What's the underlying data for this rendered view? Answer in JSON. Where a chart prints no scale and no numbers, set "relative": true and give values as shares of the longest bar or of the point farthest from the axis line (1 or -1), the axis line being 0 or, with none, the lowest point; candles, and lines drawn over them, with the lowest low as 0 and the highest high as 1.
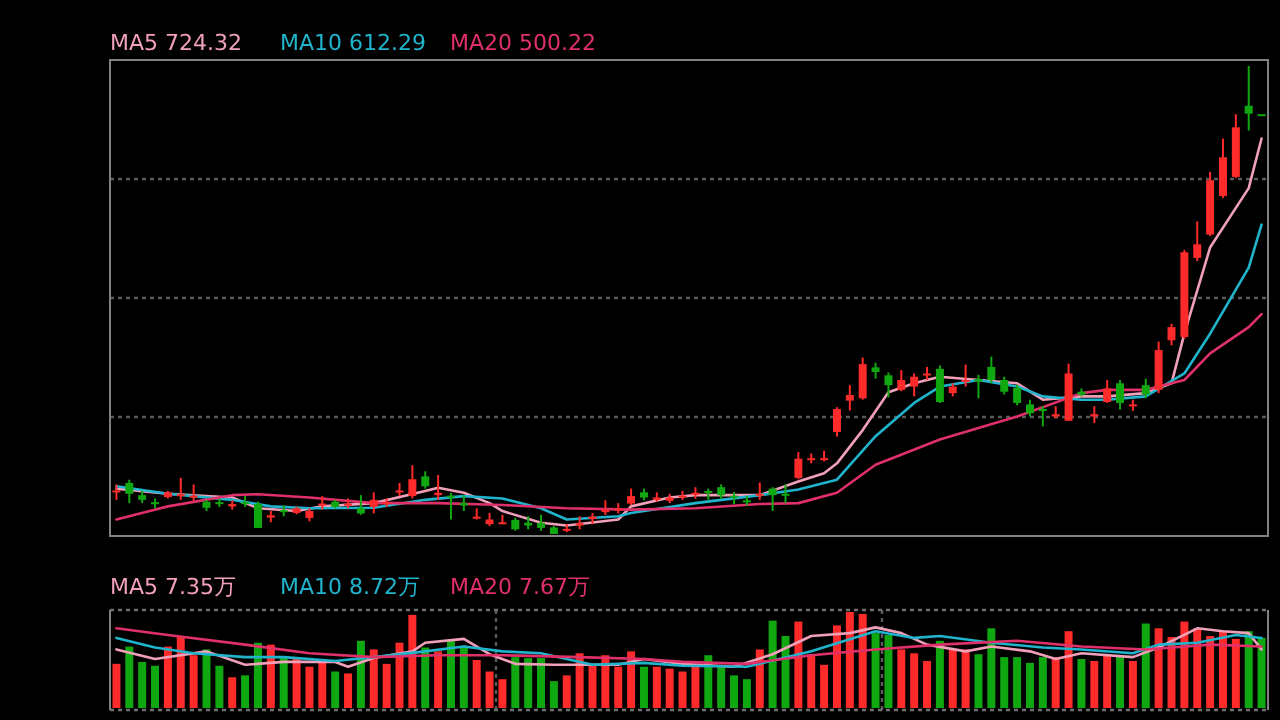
{
  "chart_data": [
    {
      "type": "candlestick",
      "relative": true,
      "grid": "y",
      "legend": "top left",
      "categories": [
        null,
        null,
        null,
        null,
        null,
        null,
        null,
        null,
        null,
        null,
        null,
        null,
        null,
        null,
        null,
        null,
        null,
        null,
        null,
        null,
        null,
        null,
        null,
        null,
        null,
        null,
        null,
        null,
        null,
        null,
        null,
        null,
        null,
        null,
        null,
        null,
        null,
        null,
        null,
        null,
        null,
        null,
        null,
        null,
        null,
        null,
        null,
        null,
        null,
        null,
        null,
        null,
        null,
        null,
        null,
        null,
        null,
        null,
        null,
        null,
        null,
        null,
        null,
        null,
        null,
        null,
        null,
        null,
        null,
        null,
        null,
        null,
        null,
        null,
        null,
        null,
        null,
        null,
        null,
        null,
        null,
        null,
        null,
        null,
        null,
        null,
        null,
        null,
        null,
        null
      ],
      "ohlc": [
        [
          0.09,
          0.106,
          0.073,
          0.093
        ],
        [
          0.109,
          0.116,
          0.066,
          0.086
        ],
        [
          0.083,
          0.092,
          0.066,
          0.073
        ],
        [
          0.068,
          0.076,
          0.055,
          0.065
        ],
        [
          0.079,
          0.092,
          0.076,
          0.089
        ],
        [
          0.082,
          0.12,
          0.073,
          0.085
        ],
        [
          0.079,
          0.106,
          0.071,
          0.082
        ],
        [
          0.069,
          0.073,
          0.049,
          0.056
        ],
        [
          0.068,
          0.075,
          0.058,
          0.064
        ],
        [
          0.059,
          0.072,
          0.052,
          0.064
        ],
        [
          0.068,
          0.081,
          0.058,
          0.064
        ],
        [
          0.064,
          0.069,
          0.013,
          0.013
        ],
        [
          0.035,
          0.049,
          0.025,
          0.04
        ],
        [
          0.051,
          0.061,
          0.038,
          0.047
        ],
        [
          0.045,
          0.058,
          0.042,
          0.055
        ],
        [
          0.034,
          0.055,
          0.027,
          0.049
        ],
        [
          0.061,
          0.081,
          0.052,
          0.065
        ],
        [
          0.069,
          0.073,
          0.055,
          0.058
        ],
        [
          0.062,
          0.076,
          0.055,
          0.065
        ],
        [
          0.055,
          0.083,
          0.041,
          0.044
        ],
        [
          0.058,
          0.089,
          0.044,
          0.073
        ],
        [
          0.065,
          0.076,
          0.058,
          0.068
        ],
        [
          0.09,
          0.109,
          0.081,
          0.093
        ],
        [
          0.081,
          0.147,
          0.076,
          0.117
        ],
        [
          0.123,
          0.134,
          0.097,
          0.102
        ],
        [
          0.083,
          0.126,
          0.073,
          0.088
        ],
        [
          0.082,
          0.088,
          0.031,
          0.078
        ],
        [
          0.066,
          0.083,
          0.049,
          0.061
        ],
        [
          0.034,
          0.055,
          0.031,
          0.037
        ],
        [
          0.021,
          0.045,
          0.017,
          0.031
        ],
        [
          0.023,
          0.041,
          0.021,
          0.025
        ],
        [
          0.03,
          0.035,
          0.007,
          0.01
        ],
        [
          0.024,
          0.038,
          0.01,
          0.018
        ],
        [
          0.024,
          0.041,
          0.007,
          0.013
        ],
        [
          0.014,
          0.017,
          0.0,
          0.0
        ],
        [
          0.008,
          0.021,
          0.004,
          0.011
        ],
        [
          0.018,
          0.038,
          0.01,
          0.023
        ],
        [
          0.032,
          0.045,
          0.021,
          0.037
        ],
        [
          0.048,
          0.072,
          0.041,
          0.051
        ],
        [
          0.051,
          0.066,
          0.044,
          0.054
        ],
        [
          0.065,
          0.097,
          0.062,
          0.081
        ],
        [
          0.089,
          0.097,
          0.072,
          0.078
        ],
        [
          0.073,
          0.089,
          0.069,
          0.078
        ],
        [
          0.071,
          0.086,
          0.066,
          0.078
        ],
        [
          0.079,
          0.092,
          0.073,
          0.082
        ],
        [
          0.085,
          0.1,
          0.075,
          0.088
        ],
        [
          0.092,
          0.097,
          0.073,
          0.088
        ],
        [
          0.1,
          0.106,
          0.075,
          0.083
        ],
        [
          0.082,
          0.09,
          0.064,
          0.078
        ],
        [
          0.072,
          0.081,
          0.061,
          0.069
        ],
        [
          0.082,
          0.11,
          0.073,
          0.086
        ],
        [
          0.097,
          0.1,
          0.049,
          0.083
        ],
        [
          0.086,
          0.106,
          0.066,
          0.082
        ],
        [
          0.12,
          0.175,
          0.117,
          0.161
        ],
        [
          0.158,
          0.172,
          0.151,
          0.162
        ],
        [
          0.16,
          0.178,
          0.155,
          0.162
        ],
        [
          0.218,
          0.271,
          0.208,
          0.267
        ],
        [
          0.285,
          0.318,
          0.264,
          0.297
        ],
        [
          0.29,
          0.377,
          0.287,
          0.363
        ],
        [
          0.356,
          0.366,
          0.332,
          0.346
        ],
        [
          0.339,
          0.345,
          0.292,
          0.318
        ],
        [
          0.308,
          0.35,
          0.305,
          0.329
        ],
        [
          0.315,
          0.343,
          0.294,
          0.336
        ],
        [
          0.34,
          0.357,
          0.329,
          0.343
        ],
        [
          0.353,
          0.36,
          0.28,
          0.282
        ],
        [
          0.301,
          0.322,
          0.294,
          0.315
        ],
        [
          0.325,
          0.362,
          0.315,
          0.329
        ],
        [
          0.331,
          0.34,
          0.29,
          0.326
        ],
        [
          0.357,
          0.379,
          0.322,
          0.329
        ],
        [
          0.329,
          0.336,
          0.298,
          0.304
        ],
        [
          0.312,
          0.319,
          0.275,
          0.28
        ],
        [
          0.277,
          0.287,
          0.251,
          0.258
        ],
        [
          0.267,
          0.273,
          0.23,
          0.263
        ],
        [
          0.251,
          0.273,
          0.247,
          0.256
        ],
        [
          0.242,
          0.364,
          0.242,
          0.343
        ],
        [
          0.304,
          0.311,
          0.294,
          0.298
        ],
        [
          0.251,
          0.273,
          0.237,
          0.256
        ],
        [
          0.282,
          0.329,
          0.28,
          0.311
        ],
        [
          0.322,
          0.329,
          0.266,
          0.28
        ],
        [
          0.273,
          0.287,
          0.263,
          0.277
        ],
        [
          0.318,
          0.332,
          0.29,
          0.298
        ],
        [
          0.308,
          0.411,
          0.301,
          0.393
        ],
        [
          0.414,
          0.449,
          0.403,
          0.442
        ],
        [
          0.421,
          0.607,
          0.417,
          0.602
        ],
        [
          0.59,
          0.668,
          0.583,
          0.619
        ],
        [
          0.64,
          0.774,
          0.637,
          0.756
        ],
        [
          0.722,
          0.845,
          0.718,
          0.805
        ],
        [
          0.763,
          0.897,
          0.76,
          0.869
        ],
        [
          0.915,
          1.0,
          0.862,
          0.898
        ],
        [
          0.897,
          0.897,
          0.897,
          0.897
        ]
      ],
      "colors": [
        "#ff2a2a",
        "#10a810",
        "#10a810",
        "#10a810",
        "#ff2a2a",
        "#ff2a2a",
        "#ff2a2a",
        "#10a810",
        "#10a810",
        "#ff2a2a",
        "#10a810",
        "#10a810",
        "#ff2a2a",
        "#10a810",
        "#ff2a2a",
        "#ff2a2a",
        "#ff2a2a",
        "#10a810",
        "#ff2a2a",
        "#10a810",
        "#ff2a2a",
        "#ff2a2a",
        "#ff2a2a",
        "#ff2a2a",
        "#10a810",
        "#ff2a2a",
        "#10a810",
        "#10a810",
        "#ff2a2a",
        "#ff2a2a",
        "#ff2a2a",
        "#10a810",
        "#10a810",
        "#10a810",
        "#10a810",
        "#ff2a2a",
        "#ff2a2a",
        "#ff2a2a",
        "#ff2a2a",
        "#ff2a2a",
        "#ff2a2a",
        "#10a810",
        "#ff2a2a",
        "#ff2a2a",
        "#ff2a2a",
        "#ff2a2a",
        "#10a810",
        "#10a810",
        "#10a810",
        "#10a810",
        "#ff2a2a",
        "#10a810",
        "#10a810",
        "#ff2a2a",
        "#ff2a2a",
        "#ff2a2a",
        "#ff2a2a",
        "#ff2a2a",
        "#ff2a2a",
        "#10a810",
        "#10a810",
        "#ff2a2a",
        "#ff2a2a",
        "#ff2a2a",
        "#10a810",
        "#ff2a2a",
        "#ff2a2a",
        "#10a810",
        "#10a810",
        "#10a810",
        "#10a810",
        "#10a810",
        "#10a810",
        "#ff2a2a",
        "#ff2a2a",
        "#10a810",
        "#ff2a2a",
        "#ff2a2a",
        "#10a810",
        "#ff2a2a",
        "#10a810",
        "#ff2a2a",
        "#ff2a2a",
        "#ff2a2a",
        "#ff2a2a",
        "#ff2a2a",
        "#ff2a2a",
        "#ff2a2a",
        "#10a810",
        "#10a810"
      ],
      "series": [
        {
          "type": "line",
          "name": "MA5 724.32",
          "color": "#f0a0b8",
          "values": [
            0.097,
            null,
            null,
            null,
            0.086,
            null,
            null,
            null,
            null,
            0.078,
            null,
            0.055,
            null,
            null,
            0.049,
            null,
            0.059,
            null,
            null,
            null,
            0.066,
            null,
            null,
            null,
            0.092,
            0.099,
            null,
            0.088,
            null,
            0.066,
            0.049,
            null,
            null,
            0.024,
            null,
            0.018,
            null,
            null,
            null,
            0.031,
            0.059,
            null,
            null,
            0.078,
            null,
            0.083,
            null,
            null,
            null,
            null,
            0.083,
            null,
            null,
            0.112,
            null,
            0.13,
            0.151,
            null,
            0.222,
            null,
            0.303,
            null,
            0.322,
            null,
            0.336,
            null,
            null,
            0.329,
            null,
            null,
            0.322,
            null,
            0.287,
            null,
            null,
            0.294,
            null,
            0.294,
            null,
            null,
            0.301,
            null,
            0.322,
            0.428,
            null,
            0.612,
            null,
            null,
            0.739,
            0.845
          ]
        },
        {
          "type": "line",
          "name": "MA10 612.29",
          "color": "#20b4cc",
          "values": [
            0.102,
            null,
            null,
            null,
            0.086,
            null,
            null,
            null,
            null,
            0.073,
            null,
            null,
            0.059,
            null,
            null,
            0.055,
            null,
            null,
            null,
            null,
            0.056,
            null,
            null,
            null,
            0.073,
            null,
            null,
            0.081,
            null,
            null,
            0.076,
            null,
            null,
            0.055,
            null,
            0.031,
            null,
            null,
            null,
            0.038,
            0.045,
            null,
            null,
            null,
            null,
            0.066,
            null,
            null,
            null,
            null,
            0.083,
            null,
            null,
            0.095,
            null,
            null,
            0.116,
            null,
            null,
            0.209,
            null,
            null,
            0.28,
            null,
            0.315,
            null,
            null,
            0.329,
            null,
            null,
            0.315,
            null,
            0.294,
            null,
            null,
            0.287,
            null,
            0.287,
            null,
            null,
            0.294,
            null,
            null,
            0.343,
            null,
            0.428,
            null,
            null,
            0.569,
            0.661
          ]
        },
        {
          "type": "line",
          "name": "MA20 500.22",
          "color": "#e0306a",
          "values": [
            0.031,
            null,
            null,
            null,
            0.059,
            null,
            null,
            null,
            null,
            0.083,
            null,
            0.085,
            null,
            null,
            null,
            0.078,
            null,
            null,
            null,
            null,
            0.066,
            null,
            null,
            null,
            null,
            0.066,
            null,
            null,
            null,
            null,
            0.062,
            null,
            null,
            null,
            null,
            0.055,
            null,
            null,
            null,
            null,
            0.052,
            null,
            null,
            null,
            null,
            0.055,
            null,
            null,
            null,
            null,
            0.064,
            null,
            null,
            0.066,
            null,
            null,
            0.088,
            null,
            null,
            0.148,
            null,
            null,
            null,
            null,
            0.202,
            null,
            null,
            null,
            null,
            null,
            0.251,
            null,
            null,
            null,
            null,
            0.301,
            null,
            0.308,
            null,
            null,
            0.308,
            null,
            null,
            0.329,
            null,
            0.386,
            null,
            null,
            0.442,
            0.47
          ]
        }
      ]
    },
    {
      "type": "bar",
      "relative": true,
      "grid": "x",
      "legend": "top left",
      "categories": [
        null,
        null,
        null,
        null,
        null,
        null,
        null,
        null,
        null,
        null,
        null,
        null,
        null,
        null,
        null,
        null,
        null,
        null,
        null,
        null,
        null,
        null,
        null,
        null,
        null,
        null,
        null,
        null,
        null,
        null,
        null,
        null,
        null,
        null,
        null,
        null,
        null,
        null,
        null,
        null,
        null,
        null,
        null,
        null,
        null,
        null,
        null,
        null,
        null,
        null,
        null,
        null,
        null,
        null,
        null,
        null,
        null,
        null,
        null,
        null,
        null,
        null,
        null,
        null,
        null,
        null,
        null,
        null,
        null,
        null,
        null,
        null,
        null,
        null,
        null,
        null,
        null,
        null,
        null,
        null,
        null,
        null,
        null,
        null,
        null,
        null,
        null,
        null,
        null,
        null
      ],
      "series": [
        {
          "type": "bar",
          "values": [
            0.46,
            0.64,
            0.48,
            0.44,
            0.64,
            0.75,
            0.55,
            0.61,
            0.44,
            0.32,
            0.34,
            0.68,
            0.66,
            0.53,
            0.51,
            0.43,
            0.49,
            0.38,
            0.36,
            0.7,
            0.61,
            0.46,
            0.68,
            0.97,
            0.63,
            0.59,
            0.71,
            0.64,
            0.5,
            0.38,
            0.3,
            0.53,
            0.52,
            0.52,
            0.28,
            0.34,
            0.57,
            0.44,
            0.55,
            0.43,
            0.59,
            0.43,
            0.43,
            0.41,
            0.38,
            0.43,
            0.55,
            0.43,
            0.34,
            0.3,
            0.61,
            0.91,
            0.75,
            0.9,
            0.56,
            0.45,
            0.86,
            1.0,
            0.98,
            0.78,
            0.76,
            0.61,
            0.57,
            0.49,
            0.7,
            0.61,
            0.61,
            0.56,
            0.83,
            0.53,
            0.53,
            0.47,
            0.53,
            0.53,
            0.8,
            0.51,
            0.49,
            0.56,
            0.55,
            0.49,
            0.88,
            0.83,
            0.74,
            0.9,
            0.83,
            0.75,
            0.8,
            0.72,
            0.8,
            0.73
          ],
          "colors": [
            "#ff2a2a",
            "#10a810",
            "#10a810",
            "#10a810",
            "#ff2a2a",
            "#ff2a2a",
            "#ff2a2a",
            "#10a810",
            "#10a810",
            "#ff2a2a",
            "#10a810",
            "#10a810",
            "#ff2a2a",
            "#10a810",
            "#ff2a2a",
            "#ff2a2a",
            "#ff2a2a",
            "#10a810",
            "#ff2a2a",
            "#10a810",
            "#ff2a2a",
            "#ff2a2a",
            "#ff2a2a",
            "#ff2a2a",
            "#10a810",
            "#ff2a2a",
            "#10a810",
            "#10a810",
            "#ff2a2a",
            "#ff2a2a",
            "#ff2a2a",
            "#10a810",
            "#10a810",
            "#10a810",
            "#10a810",
            "#ff2a2a",
            "#ff2a2a",
            "#ff2a2a",
            "#ff2a2a",
            "#ff2a2a",
            "#ff2a2a",
            "#10a810",
            "#ff2a2a",
            "#ff2a2a",
            "#ff2a2a",
            "#ff2a2a",
            "#10a810",
            "#10a810",
            "#10a810",
            "#10a810",
            "#ff2a2a",
            "#10a810",
            "#10a810",
            "#ff2a2a",
            "#ff2a2a",
            "#ff2a2a",
            "#ff2a2a",
            "#ff2a2a",
            "#ff2a2a",
            "#10a810",
            "#10a810",
            "#ff2a2a",
            "#ff2a2a",
            "#ff2a2a",
            "#10a810",
            "#ff2a2a",
            "#ff2a2a",
            "#10a810",
            "#10a810",
            "#10a810",
            "#10a810",
            "#10a810",
            "#10a810",
            "#ff2a2a",
            "#ff2a2a",
            "#10a810",
            "#ff2a2a",
            "#ff2a2a",
            "#10a810",
            "#ff2a2a",
            "#10a810",
            "#ff2a2a",
            "#ff2a2a",
            "#ff2a2a",
            "#ff2a2a",
            "#ff2a2a",
            "#ff2a2a",
            "#ff2a2a",
            "#10a810",
            "#10a810"
          ]
        },
        {
          "type": "line",
          "name": "MA5 7.35万",
          "color": "#f0a0b8",
          "values": [
            0.61,
            null,
            null,
            0.51,
            null,
            null,
            null,
            0.59,
            null,
            null,
            0.45,
            null,
            null,
            0.48,
            null,
            null,
            null,
            0.48,
            0.43,
            null,
            0.52,
            null,
            null,
            0.59,
            0.68,
            null,
            null,
            0.72,
            null,
            0.56,
            null,
            0.46,
            null,
            null,
            0.45,
            null,
            null,
            null,
            null,
            0.45,
            null,
            0.51,
            null,
            null,
            0.46,
            null,
            null,
            null,
            0.43,
            null,
            null,
            0.56,
            null,
            null,
            0.75,
            null,
            null,
            0.78,
            null,
            0.84,
            null,
            0.78,
            null,
            0.66,
            null,
            null,
            0.59,
            null,
            0.64,
            null,
            null,
            0.59,
            null,
            0.51,
            null,
            0.57,
            null,
            null,
            null,
            0.53,
            null,
            0.63,
            null,
            null,
            0.83,
            null,
            0.8,
            null,
            0.78,
            0.61
          ]
        },
        {
          "type": "line",
          "name": "MA10 8.72万",
          "color": "#20b4cc",
          "values": [
            0.73,
            null,
            null,
            0.63,
            null,
            null,
            0.57,
            null,
            null,
            null,
            0.53,
            null,
            null,
            0.53,
            null,
            null,
            null,
            0.49,
            null,
            null,
            0.53,
            null,
            null,
            null,
            0.59,
            null,
            null,
            0.64,
            null,
            null,
            0.59,
            null,
            null,
            0.57,
            null,
            null,
            null,
            0.45,
            null,
            null,
            null,
            0.47,
            null,
            null,
            0.44,
            null,
            null,
            null,
            null,
            0.43,
            null,
            null,
            null,
            null,
            0.59,
            null,
            null,
            null,
            null,
            0.8,
            null,
            null,
            0.73,
            null,
            0.75,
            null,
            null,
            null,
            0.68,
            null,
            null,
            null,
            0.63,
            null,
            null,
            0.61,
            null,
            null,
            null,
            0.57,
            null,
            0.66,
            null,
            null,
            0.68,
            null,
            null,
            0.76,
            null,
            0.73
          ]
        },
        {
          "type": "line",
          "name": "MA20 7.67万",
          "color": "#e0306a",
          "values": [
            0.83,
            null,
            null,
            null,
            0.76,
            null,
            null,
            null,
            null,
            null,
            0.66,
            null,
            null,
            null,
            null,
            0.57,
            null,
            null,
            null,
            null,
            0.53,
            null,
            null,
            null,
            null,
            0.55,
            null,
            null,
            null,
            null,
            0.55,
            null,
            null,
            null,
            null,
            null,
            0.53,
            null,
            null,
            null,
            null,
            0.51,
            null,
            null,
            0.48,
            null,
            null,
            null,
            null,
            0.46,
            null,
            null,
            null,
            null,
            0.55,
            null,
            null,
            null,
            null,
            0.61,
            null,
            null,
            null,
            null,
            0.66,
            null,
            null,
            null,
            null,
            null,
            0.7,
            null,
            null,
            null,
            null,
            0.64,
            null,
            null,
            null,
            null,
            0.61,
            null,
            null,
            null,
            null,
            0.66,
            null,
            null,
            null,
            0.64
          ]
        }
      ]
    }
  ]
}
